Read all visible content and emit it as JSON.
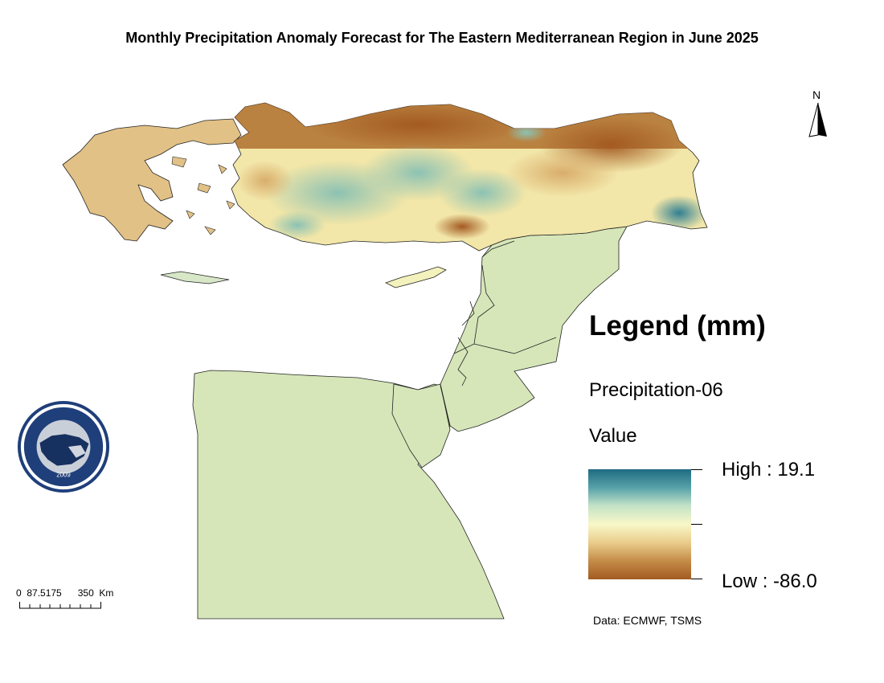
{
  "title": "Monthly Precipitation Anomaly Forecast for The Eastern Mediterranean Region in June 2025",
  "legend": {
    "title": "Legend (mm)",
    "layer": "Precipitation-06",
    "field": "Value",
    "high_label": "High : 19.1",
    "low_label": "Low : -86.0",
    "high_value": 19.1,
    "low_value": -86.0,
    "ramp_colors": [
      "#1e6a82",
      "#58a3a9",
      "#c3e2c7",
      "#f9f8c8",
      "#e9cb8a",
      "#c58d48",
      "#a35a22"
    ]
  },
  "data_source": "Data: ECMWF, TSMS",
  "scale_bar": {
    "labels": "0  87.5175      350  Km"
  },
  "north_arrow": {
    "label": "N"
  },
  "logo": {
    "text": "EASTERN MEDITERRANEAN CLIMATE CENTRE",
    "year": "2009"
  },
  "colors": {
    "southern_region_fill": "#d6e6b9",
    "dry_anomaly": "#a35a22",
    "wet_anomaly": "#1e6a82",
    "neutral": "#f9f8c8"
  }
}
